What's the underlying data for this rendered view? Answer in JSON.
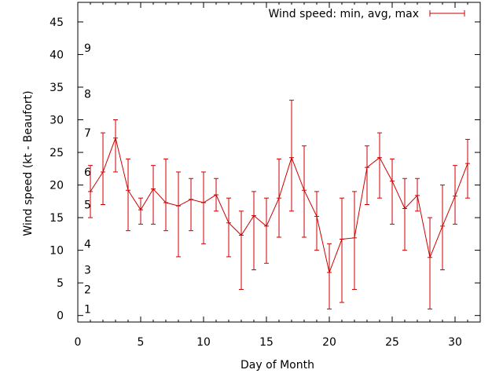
{
  "chart_data": {
    "type": "line",
    "xlabel": "Day of Month",
    "ylabel": "Wind speed (kt - Beaufort)",
    "xlim": [
      0,
      32
    ],
    "ylim": [
      -1,
      48
    ],
    "xticks": [
      0,
      5,
      10,
      15,
      20,
      25,
      30
    ],
    "yticks": [
      0,
      5,
      10,
      15,
      20,
      25,
      30,
      35,
      40,
      45
    ],
    "grid": false,
    "legend_position": "top-right",
    "beaufort_labels": [
      {
        "label": "1",
        "at": 1
      },
      {
        "label": "2",
        "at": 4
      },
      {
        "label": "3",
        "at": 7
      },
      {
        "label": "4",
        "at": 11
      },
      {
        "label": "5",
        "at": 17
      },
      {
        "label": "6",
        "at": 22
      },
      {
        "label": "7",
        "at": 28
      },
      {
        "label": "8",
        "at": 34
      },
      {
        "label": "9",
        "at": 41
      }
    ],
    "series": [
      {
        "name": "Wind speed: min, avg, max",
        "color": "#cc0000",
        "x": [
          1,
          2,
          3,
          4,
          5,
          6,
          7,
          8,
          9,
          10,
          11,
          12,
          13,
          14,
          15,
          16,
          17,
          18,
          19,
          20,
          21,
          22,
          23,
          24,
          25,
          26,
          27,
          28,
          29,
          30,
          31
        ],
        "avg": [
          19,
          22,
          27.2,
          19.2,
          16.2,
          19.4,
          17.3,
          16.8,
          17.8,
          17.3,
          18.5,
          14.2,
          12.3,
          15.3,
          13.7,
          18,
          24.2,
          19.2,
          15.2,
          6.6,
          11.7,
          11.9,
          22.7,
          24.2,
          20.6,
          16.4,
          18.4,
          8.9,
          13.7,
          18.3,
          23.3
        ],
        "min": [
          15,
          17,
          22,
          13,
          14,
          14,
          13,
          9,
          13,
          11,
          16,
          9,
          4,
          7,
          8,
          12,
          16,
          12,
          10,
          1,
          2,
          4,
          17,
          18,
          14,
          10,
          16,
          1,
          7,
          14,
          18
        ],
        "max": [
          23,
          28,
          30,
          24,
          18,
          23,
          24,
          22,
          21,
          22,
          21,
          18,
          16,
          19,
          18,
          24,
          33,
          26,
          19,
          11,
          18,
          19,
          26,
          28,
          24,
          21,
          21,
          15,
          20,
          23,
          27
        ]
      }
    ]
  }
}
